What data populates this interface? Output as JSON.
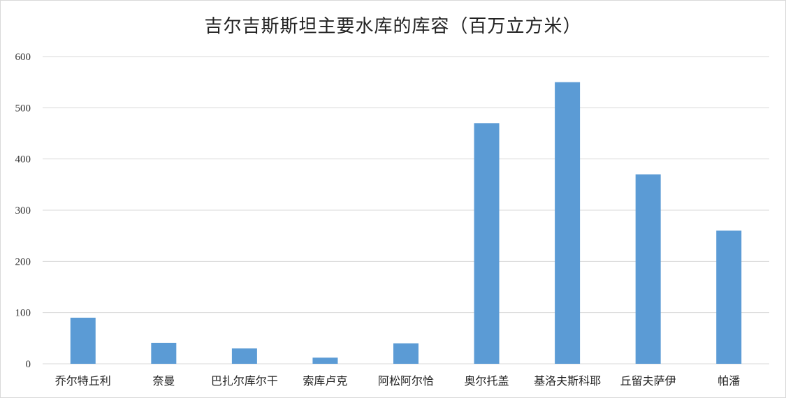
{
  "chart_data": {
    "type": "bar",
    "title": "吉尔吉斯斯坦主要水库的库容（百万立方米）",
    "xlabel": "",
    "ylabel": "",
    "categories": [
      "乔尔特丘利",
      "奈曼",
      "巴扎尔库尔干",
      "索库卢克",
      "阿松阿尔恰",
      "奥尔托盖",
      "基洛夫斯科耶",
      "丘留夫萨伊",
      "帕潘"
    ],
    "values": [
      90,
      41,
      30,
      12,
      40,
      470,
      550,
      370,
      260
    ],
    "ylim": [
      0,
      600
    ],
    "yticks": [
      0,
      100,
      200,
      300,
      400,
      500,
      600
    ],
    "grid": true,
    "bar_color": "#5b9bd5",
    "grid_color": "#d9d9d9"
  }
}
